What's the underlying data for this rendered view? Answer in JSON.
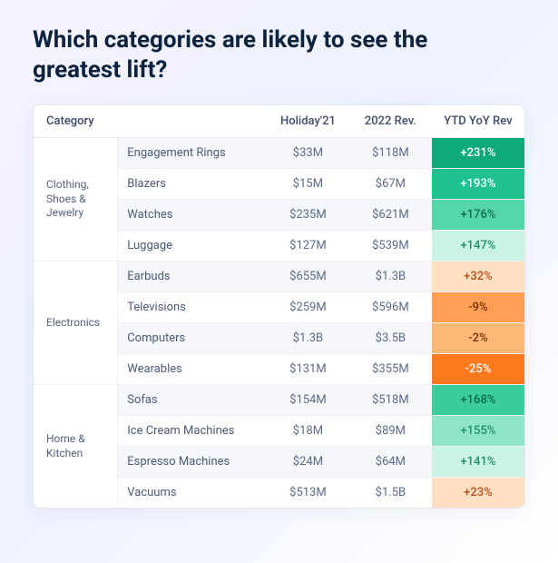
{
  "title": "Which categories are likely to see the greatest lift?",
  "columns": {
    "category": "Category",
    "holiday21": "Holiday'21",
    "rev2022": "2022 Rev.",
    "ytdyoy": "YTD YoY Rev"
  },
  "table": {
    "type": "table",
    "font_size": 13,
    "header_color": "#3d4c6a",
    "text_color": "#4b5a77",
    "border_color": "#e3e6f0",
    "zebra_bg": "#f5f7fb",
    "card_bg": "#ffffff",
    "page_bg_gradient": [
      "#f5f3ff",
      "#eef2ff",
      "#ffffff"
    ],
    "yoy_text_colors": {
      "pos_dark": "#ffffff",
      "pos_light": "#1e8f6a",
      "neg_dark": "#ffffff",
      "neg_light": "#b44d15"
    }
  },
  "groups": [
    {
      "name": "Clothing, Shoes & Jewelry",
      "rows": [
        {
          "sub": "Engagement Rings",
          "h21": "$33M",
          "rev": "$118M",
          "yoy": "+231%",
          "yoy_bg": "#0fa97a",
          "yoy_fg": "#ffffff"
        },
        {
          "sub": "Blazers",
          "h21": "$15M",
          "rev": "$67M",
          "yoy": "+193%",
          "yoy_bg": "#1fc18e",
          "yoy_fg": "#ffffff"
        },
        {
          "sub": "Watches",
          "h21": "$235M",
          "rev": "$621M",
          "yoy": "+176%",
          "yoy_bg": "#55d6aa",
          "yoy_fg": "#0d6b4c"
        },
        {
          "sub": "Luggage",
          "h21": "$127M",
          "rev": "$539M",
          "yoy": "+147%",
          "yoy_bg": "#caf3e4",
          "yoy_fg": "#1e8f6a"
        }
      ]
    },
    {
      "name": "Electronics",
      "rows": [
        {
          "sub": "Earbuds",
          "h21": "$655M",
          "rev": "$1.3B",
          "yoy": "+32%",
          "yoy_bg": "#ffe0c2",
          "yoy_fg": "#b44d15"
        },
        {
          "sub": "Televisions",
          "h21": "$259M",
          "rev": "$596M",
          "yoy": "-9%",
          "yoy_bg": "#ff9f55",
          "yoy_fg": "#7a2e06"
        },
        {
          "sub": "Computers",
          "h21": "$1.3B",
          "rev": "$3.5B",
          "yoy": "-2%",
          "yoy_bg": "#ffb877",
          "yoy_fg": "#7a2e06"
        },
        {
          "sub": "Wearables",
          "h21": "$131M",
          "rev": "$355M",
          "yoy": "-25%",
          "yoy_bg": "#ff7a1f",
          "yoy_fg": "#ffffff"
        }
      ]
    },
    {
      "name": "Home & Kitchen",
      "rows": [
        {
          "sub": "Sofas",
          "h21": "$154M",
          "rev": "$518M",
          "yoy": "+168%",
          "yoy_bg": "#3bcd9b",
          "yoy_fg": "#0d6b4c"
        },
        {
          "sub": "Ice Cream Machines",
          "h21": "$18M",
          "rev": "$89M",
          "yoy": "+155%",
          "yoy_bg": "#8fe5c7",
          "yoy_fg": "#1e8f6a"
        },
        {
          "sub": "Espresso Machines",
          "h21": "$24M",
          "rev": "$64M",
          "yoy": "+141%",
          "yoy_bg": "#caf3e4",
          "yoy_fg": "#1e8f6a"
        },
        {
          "sub": "Vacuums",
          "h21": "$513M",
          "rev": "$1.5B",
          "yoy": "+23%",
          "yoy_bg": "#ffe0c2",
          "yoy_fg": "#b44d15"
        }
      ]
    }
  ]
}
